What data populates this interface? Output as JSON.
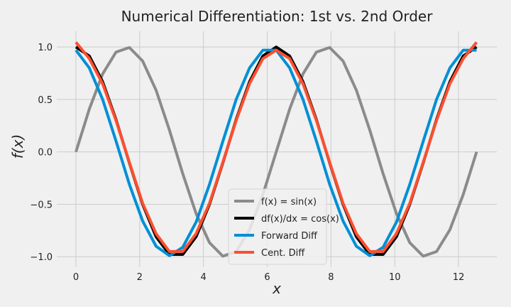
{
  "chart_data": {
    "type": "line",
    "title": "Numerical Differentiation: 1st vs. 2nd Order",
    "xlabel": "x",
    "ylabel": "f(x)",
    "xlim": [
      -0.6,
      13.2
    ],
    "ylim": [
      -1.1,
      1.15
    ],
    "xticks": [
      0,
      2,
      4,
      6,
      8,
      10,
      12
    ],
    "yticks": [
      -1.0,
      -0.5,
      0.0,
      0.5,
      1.0
    ],
    "grid": true,
    "legend_position": "lower center",
    "series": [
      {
        "name": "f(x) = sin(x)",
        "color": "#8b8b8b",
        "x": [
          0,
          0.419,
          0.838,
          1.257,
          1.676,
          2.094,
          2.513,
          2.932,
          3.351,
          3.77,
          4.189,
          4.608,
          5.027,
          5.445,
          5.864,
          6.283,
          6.702,
          7.121,
          7.54,
          7.959,
          8.378,
          8.796,
          9.215,
          9.634,
          10.053,
          10.472,
          10.891,
          11.31,
          11.729,
          12.147,
          12.566
        ],
        "y": [
          0.0,
          0.407,
          0.743,
          0.951,
          0.995,
          0.866,
          0.588,
          0.208,
          -0.208,
          -0.588,
          -0.866,
          -0.995,
          -0.951,
          -0.743,
          -0.407,
          0.0,
          0.407,
          0.743,
          0.951,
          0.995,
          0.866,
          0.588,
          0.208,
          -0.208,
          -0.588,
          -0.866,
          -0.995,
          -0.951,
          -0.743,
          -0.407,
          0.0
        ]
      },
      {
        "name": "df(x)/dx = cos(x)",
        "color": "#000000",
        "x": [
          0,
          0.419,
          0.838,
          1.257,
          1.676,
          2.094,
          2.513,
          2.932,
          3.351,
          3.77,
          4.189,
          4.608,
          5.027,
          5.445,
          5.864,
          6.283,
          6.702,
          7.121,
          7.54,
          7.959,
          8.378,
          8.796,
          9.215,
          9.634,
          10.053,
          10.472,
          10.891,
          11.31,
          11.729,
          12.147,
          12.566
        ],
        "y": [
          1.0,
          0.914,
          0.669,
          0.309,
          -0.105,
          -0.5,
          -0.809,
          -0.978,
          -0.978,
          -0.809,
          -0.5,
          -0.105,
          0.309,
          0.669,
          0.914,
          1.0,
          0.914,
          0.669,
          0.309,
          -0.105,
          -0.5,
          -0.809,
          -0.978,
          -0.978,
          -0.809,
          -0.5,
          -0.105,
          0.309,
          0.669,
          0.914,
          1.0
        ]
      },
      {
        "name": "Forward Diff",
        "color": "#008fd5",
        "x": [
          0,
          0.419,
          0.838,
          1.257,
          1.676,
          2.094,
          2.513,
          2.932,
          3.351,
          3.77,
          4.189,
          4.608,
          5.027,
          5.445,
          5.864,
          6.283,
          6.702,
          7.121,
          7.54,
          7.959,
          8.378,
          8.796,
          9.215,
          9.634,
          10.053,
          10.472,
          10.891,
          11.31,
          11.729,
          12.147,
          12.566
        ],
        "y": [
          0.97,
          0.8,
          0.5,
          0.105,
          -0.31,
          -0.66,
          -0.9,
          -0.99,
          -0.91,
          -0.67,
          -0.31,
          0.1,
          0.5,
          0.8,
          0.97,
          0.97,
          0.8,
          0.5,
          0.105,
          -0.31,
          -0.66,
          -0.9,
          -0.99,
          -0.91,
          -0.67,
          -0.31,
          0.1,
          0.5,
          0.8,
          0.97,
          0.97
        ]
      },
      {
        "name": "Cent. Diff",
        "color": "#fc4f30",
        "x": [
          0,
          0.419,
          0.838,
          1.257,
          1.676,
          2.094,
          2.513,
          2.932,
          3.351,
          3.77,
          4.189,
          4.608,
          5.027,
          5.445,
          5.864,
          6.283,
          6.702,
          7.121,
          7.54,
          7.959,
          8.378,
          8.796,
          9.215,
          9.634,
          10.053,
          10.472,
          10.891,
          11.31,
          11.729,
          12.147,
          12.566
        ],
        "y": [
          1.045,
          0.89,
          0.65,
          0.3,
          -0.1,
          -0.49,
          -0.78,
          -0.95,
          -0.95,
          -0.78,
          -0.49,
          -0.1,
          0.3,
          0.65,
          0.89,
          0.97,
          0.89,
          0.65,
          0.3,
          -0.1,
          -0.49,
          -0.78,
          -0.95,
          -0.95,
          -0.78,
          -0.49,
          -0.1,
          0.3,
          0.65,
          0.89,
          1.045
        ]
      }
    ]
  }
}
